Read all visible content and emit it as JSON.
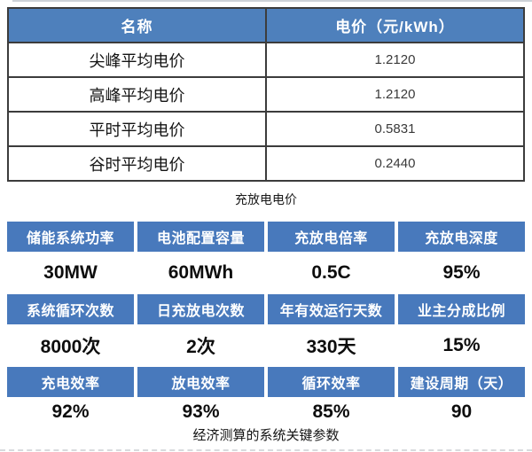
{
  "price_table": {
    "col_headers": [
      "名称",
      "电价（元/kWh）"
    ],
    "rows": [
      {
        "label": "尖峰平均电价",
        "value": "1.2120"
      },
      {
        "label": "高峰平均电价",
        "value": "1.2120"
      },
      {
        "label": "平时平均电价",
        "value": "0.5831"
      },
      {
        "label": "谷时平均电价",
        "value": "0.2440"
      }
    ],
    "caption": "充放电电价"
  },
  "params_table": {
    "caption": "经济测算的系统关键参数",
    "groups": [
      {
        "headers": [
          "储能系统功率",
          "电池配置容量",
          "充放电倍率",
          "充放电深度"
        ],
        "values": [
          "30MW",
          "60MWh",
          "0.5C",
          "95%"
        ]
      },
      {
        "headers": [
          "系统循环次数",
          "日充放电次数",
          "年有效运行天数",
          "业主分成比例"
        ],
        "values": [
          "8000次",
          "2次",
          "330天",
          "15%"
        ]
      },
      {
        "headers": [
          "充电效率",
          "放电效率",
          "循环效率",
          "建设周期（天）"
        ],
        "values": [
          "92%",
          "93%",
          "85%",
          "90"
        ]
      }
    ]
  },
  "colors": {
    "price_header_blue": "#4e80bc",
    "params_header_blue": "#4879bc",
    "table_border": "#3c3c3c",
    "edge_line_gray": "#cdd2d8"
  }
}
